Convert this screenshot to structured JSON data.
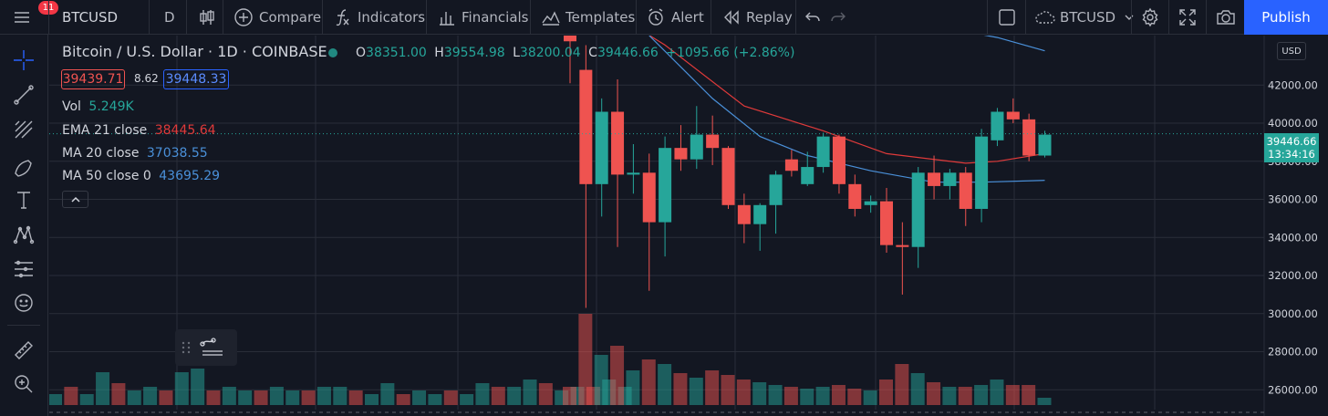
{
  "header": {
    "menu_badge": "11",
    "symbol": "BTCUSD",
    "interval": "D",
    "compare": "Compare",
    "indicators": "Indicators",
    "financials": "Financials",
    "templates": "Templates",
    "alert": "Alert",
    "replay": "Replay",
    "layout_name": "BTCUSD",
    "publish": "Publish"
  },
  "legend": {
    "title": "Bitcoin / U.S. Dollar · 1D · COINBASE",
    "o_label": "O",
    "o_value": "38351.00",
    "h_label": "H",
    "h_value": "39554.98",
    "l_label": "L",
    "l_value": "38200.04",
    "c_label": "C",
    "c_value": "39446.66",
    "change": "+1095.66 (+2.86%)",
    "bid": "39439.71",
    "spread": "8.62",
    "ask": "39448.33",
    "vol_label": "Vol",
    "vol_value": "5.249K",
    "ema_label": "EMA 21 close",
    "ema_value": "38445.64",
    "ma20_label": "MA 20 close",
    "ma20_value": "37038.55",
    "ma50_label": "MA 50 close 0",
    "ma50_value": "43695.29"
  },
  "price_axis": {
    "currency": "USD",
    "current_price": "39446.66",
    "countdown": "13:34:16"
  },
  "colors": {
    "up": "#26a69a",
    "down": "#ef5350",
    "ema": "#e03a3a",
    "ma20": "#4a90d9",
    "ma50": "#4a90d9",
    "accent": "#2962ff"
  },
  "chart_data": {
    "type": "candlestick",
    "ylim": [
      25200,
      44600
    ],
    "price_ticks": [
      "26000.00",
      "28000.00",
      "30000.00",
      "32000.00",
      "34000.00",
      "36000.00",
      "38000.00",
      "40000.00",
      "42000.00"
    ],
    "candles": [
      {
        "o": 44600,
        "h": 44600,
        "l": 42100,
        "c": 44300,
        "v": 0.2
      },
      {
        "o": 42800,
        "h": 44100,
        "l": 30300,
        "c": 36800,
        "v": 1.0
      },
      {
        "o": 36800,
        "h": 41300,
        "l": 35100,
        "c": 40600,
        "v": 0.55
      },
      {
        "o": 40600,
        "h": 42300,
        "l": 33500,
        "c": 37300,
        "v": 0.65
      },
      {
        "o": 37300,
        "h": 38900,
        "l": 36300,
        "c": 37400,
        "v": 0.38
      },
      {
        "o": 37400,
        "h": 38400,
        "l": 31200,
        "c": 34800,
        "v": 0.5
      },
      {
        "o": 34800,
        "h": 39300,
        "l": 33000,
        "c": 38700,
        "v": 0.45
      },
      {
        "o": 38700,
        "h": 39900,
        "l": 37500,
        "c": 38100,
        "v": 0.35
      },
      {
        "o": 38100,
        "h": 40900,
        "l": 37600,
        "c": 39400,
        "v": 0.3
      },
      {
        "o": 39400,
        "h": 40400,
        "l": 37800,
        "c": 38700,
        "v": 0.38
      },
      {
        "o": 38700,
        "h": 38800,
        "l": 35500,
        "c": 35700,
        "v": 0.33
      },
      {
        "o": 35700,
        "h": 36300,
        "l": 33700,
        "c": 34700,
        "v": 0.28
      },
      {
        "o": 34700,
        "h": 35800,
        "l": 33300,
        "c": 35700,
        "v": 0.25
      },
      {
        "o": 35700,
        "h": 37500,
        "l": 34200,
        "c": 37300,
        "v": 0.22
      },
      {
        "o": 38100,
        "h": 38600,
        "l": 37200,
        "c": 37500,
        "v": 0.2
      },
      {
        "o": 36800,
        "h": 38500,
        "l": 36700,
        "c": 37700,
        "v": 0.18
      },
      {
        "o": 37700,
        "h": 39500,
        "l": 37400,
        "c": 39300,
        "v": 0.2
      },
      {
        "o": 39300,
        "h": 39400,
        "l": 36300,
        "c": 36800,
        "v": 0.22
      },
      {
        "o": 36800,
        "h": 37300,
        "l": 35100,
        "c": 35500,
        "v": 0.18
      },
      {
        "o": 35700,
        "h": 36200,
        "l": 35300,
        "c": 35900,
        "v": 0.16
      },
      {
        "o": 35900,
        "h": 36600,
        "l": 33200,
        "c": 33600,
        "v": 0.28
      },
      {
        "o": 33600,
        "h": 34800,
        "l": 31000,
        "c": 33500,
        "v": 0.45
      },
      {
        "o": 33500,
        "h": 37700,
        "l": 32400,
        "c": 37400,
        "v": 0.35
      },
      {
        "o": 37400,
        "h": 38300,
        "l": 36000,
        "c": 36700,
        "v": 0.25
      },
      {
        "o": 36700,
        "h": 37600,
        "l": 36000,
        "c": 37400,
        "v": 0.2
      },
      {
        "o": 37400,
        "h": 37700,
        "l": 34600,
        "c": 35500,
        "v": 0.2
      },
      {
        "o": 35500,
        "h": 39700,
        "l": 34800,
        "c": 39300,
        "v": 0.22
      },
      {
        "o": 39100,
        "h": 40800,
        "l": 38800,
        "c": 40600,
        "v": 0.28
      },
      {
        "o": 40600,
        "h": 41300,
        "l": 40000,
        "c": 40200,
        "v": 0.22
      },
      {
        "o": 40200,
        "h": 40500,
        "l": 38000,
        "c": 38300,
        "v": 0.22
      },
      {
        "o": 38300,
        "h": 39600,
        "l": 38200,
        "c": 39400,
        "v": 0.08
      }
    ],
    "ema21": [
      [
        0,
        47200
      ],
      [
        6,
        44100
      ],
      [
        11,
        40900
      ],
      [
        16,
        39600
      ],
      [
        20,
        38400
      ],
      [
        25,
        37900
      ],
      [
        27,
        38000
      ],
      [
        30,
        38400
      ]
    ],
    "ma20": [
      [
        5,
        44600
      ],
      [
        9,
        41300
      ],
      [
        12,
        39300
      ],
      [
        15,
        38300
      ],
      [
        19,
        37500
      ],
      [
        23,
        36900
      ],
      [
        26,
        36900
      ],
      [
        30,
        37000
      ]
    ],
    "ma50": [
      [
        25,
        44800
      ],
      [
        27,
        44500
      ],
      [
        30,
        43800
      ]
    ]
  }
}
